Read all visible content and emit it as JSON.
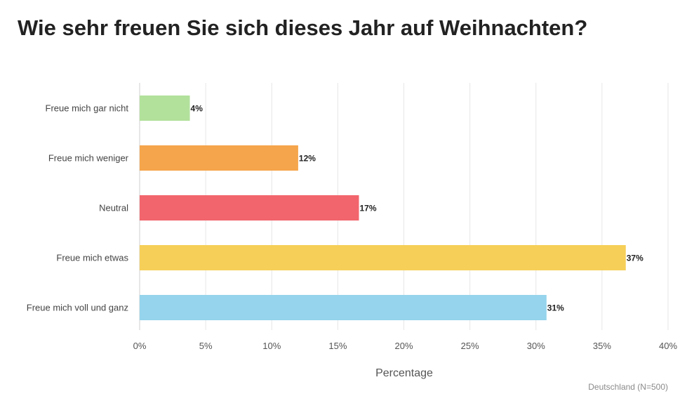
{
  "chart_data": {
    "type": "bar",
    "orientation": "horizontal",
    "title": "Wie sehr freuen Sie sich dieses Jahr auf Weihnachten?",
    "xlabel": "Percentage",
    "ylabel": "",
    "xlim": [
      0,
      40
    ],
    "ticks": [
      0,
      5,
      10,
      15,
      20,
      25,
      30,
      35,
      40
    ],
    "tick_suffix": "%",
    "grid": true,
    "categories": [
      "Freue mich gar nicht",
      "Freue mich weniger",
      "Neutral",
      "Freue mich etwas",
      "Freue mich voll und ganz"
    ],
    "values": [
      3.8,
      12,
      16.6,
      36.8,
      30.8
    ],
    "value_labels": [
      "4%",
      "12%",
      "17%",
      "37%",
      "31%"
    ],
    "colors": [
      "#b2e19b",
      "#f5a54b",
      "#f2656c",
      "#f6cf58",
      "#95d4ec"
    ],
    "footnote": "Deutschland (N=500)"
  }
}
